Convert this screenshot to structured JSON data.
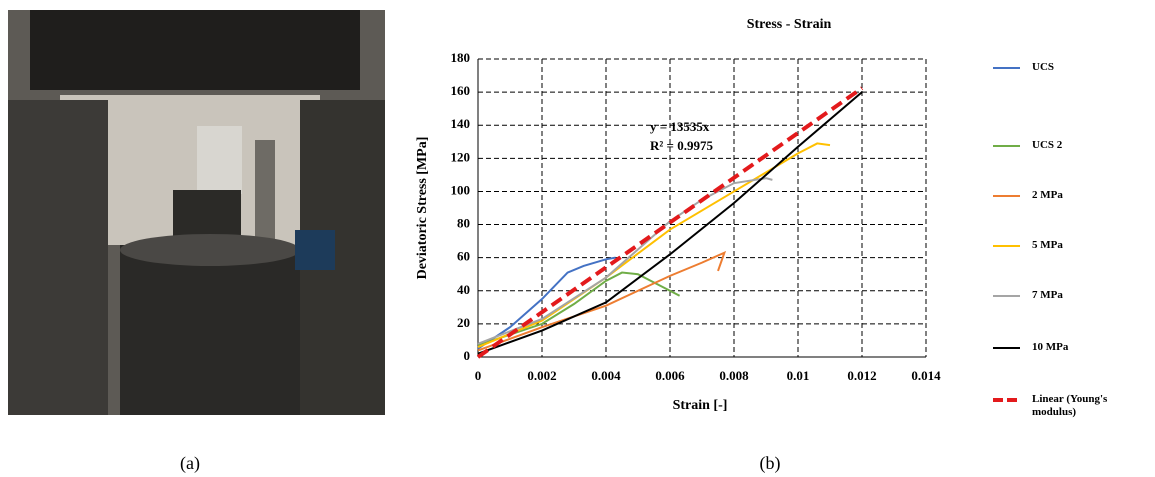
{
  "chart_data": {
    "type": "line",
    "title": "Stress - Strain",
    "xlabel": "Strain  [-]",
    "ylabel": "Deviatoric Stress [MPa]",
    "xlim": [
      0,
      0.014
    ],
    "xticks": [
      0,
      0.002,
      0.004,
      0.006,
      0.008,
      0.01,
      0.012,
      0.014
    ],
    "ylim": [
      0,
      180
    ],
    "yticks": [
      0,
      20,
      40,
      60,
      80,
      100,
      120,
      140,
      160,
      180
    ],
    "grid": true,
    "legend": "right",
    "annotations": [
      "y = 13535x",
      "R² = 0.9975"
    ],
    "series": [
      {
        "name": "UCS",
        "color": "#4472c4",
        "x": [
          0,
          0.001,
          0.002,
          0.0028,
          0.0033,
          0.004,
          0.0043
        ],
        "values": [
          5,
          18,
          35,
          51,
          55,
          59,
          60
        ]
      },
      {
        "name": "UCS 2",
        "color": "#70ad47",
        "x": [
          0,
          0.002,
          0.003,
          0.004,
          0.0045,
          0.005,
          0.0055,
          0.0063
        ],
        "values": [
          7,
          20,
          32,
          46,
          51,
          50,
          45,
          37
        ]
      },
      {
        "name": "2 MPa",
        "color": "#ed7d31",
        "x": [
          0,
          0.002,
          0.004,
          0.005,
          0.006,
          0.007,
          0.0077,
          0.0075
        ],
        "values": [
          4,
          18,
          31,
          40,
          49,
          57,
          63,
          52
        ]
      },
      {
        "name": "5 MPa",
        "color": "#ffc000",
        "x": [
          0,
          0.002,
          0.004,
          0.006,
          0.008,
          0.01,
          0.0106,
          0.011
        ],
        "values": [
          6,
          22,
          48,
          77,
          100,
          123,
          129,
          128
        ]
      },
      {
        "name": "7 MPa",
        "color": "#a5a5a5",
        "x": [
          0,
          0.002,
          0.004,
          0.006,
          0.007,
          0.008,
          0.009,
          0.0092
        ],
        "values": [
          8,
          23,
          48,
          82,
          95,
          105,
          108,
          107
        ]
      },
      {
        "name": "10 MPa",
        "color": "#000000",
        "x": [
          0,
          0.002,
          0.004,
          0.006,
          0.008,
          0.01,
          0.012
        ],
        "values": [
          2,
          16,
          33,
          62,
          93,
          127,
          160
        ]
      },
      {
        "name": "Linear (Young's modulus)",
        "color": "#e31a1c",
        "line_style": "dashed",
        "x": [
          0,
          0.012
        ],
        "values": [
          0,
          162.4
        ]
      }
    ]
  },
  "captions": [
    "(a)",
    "(b)"
  ]
}
